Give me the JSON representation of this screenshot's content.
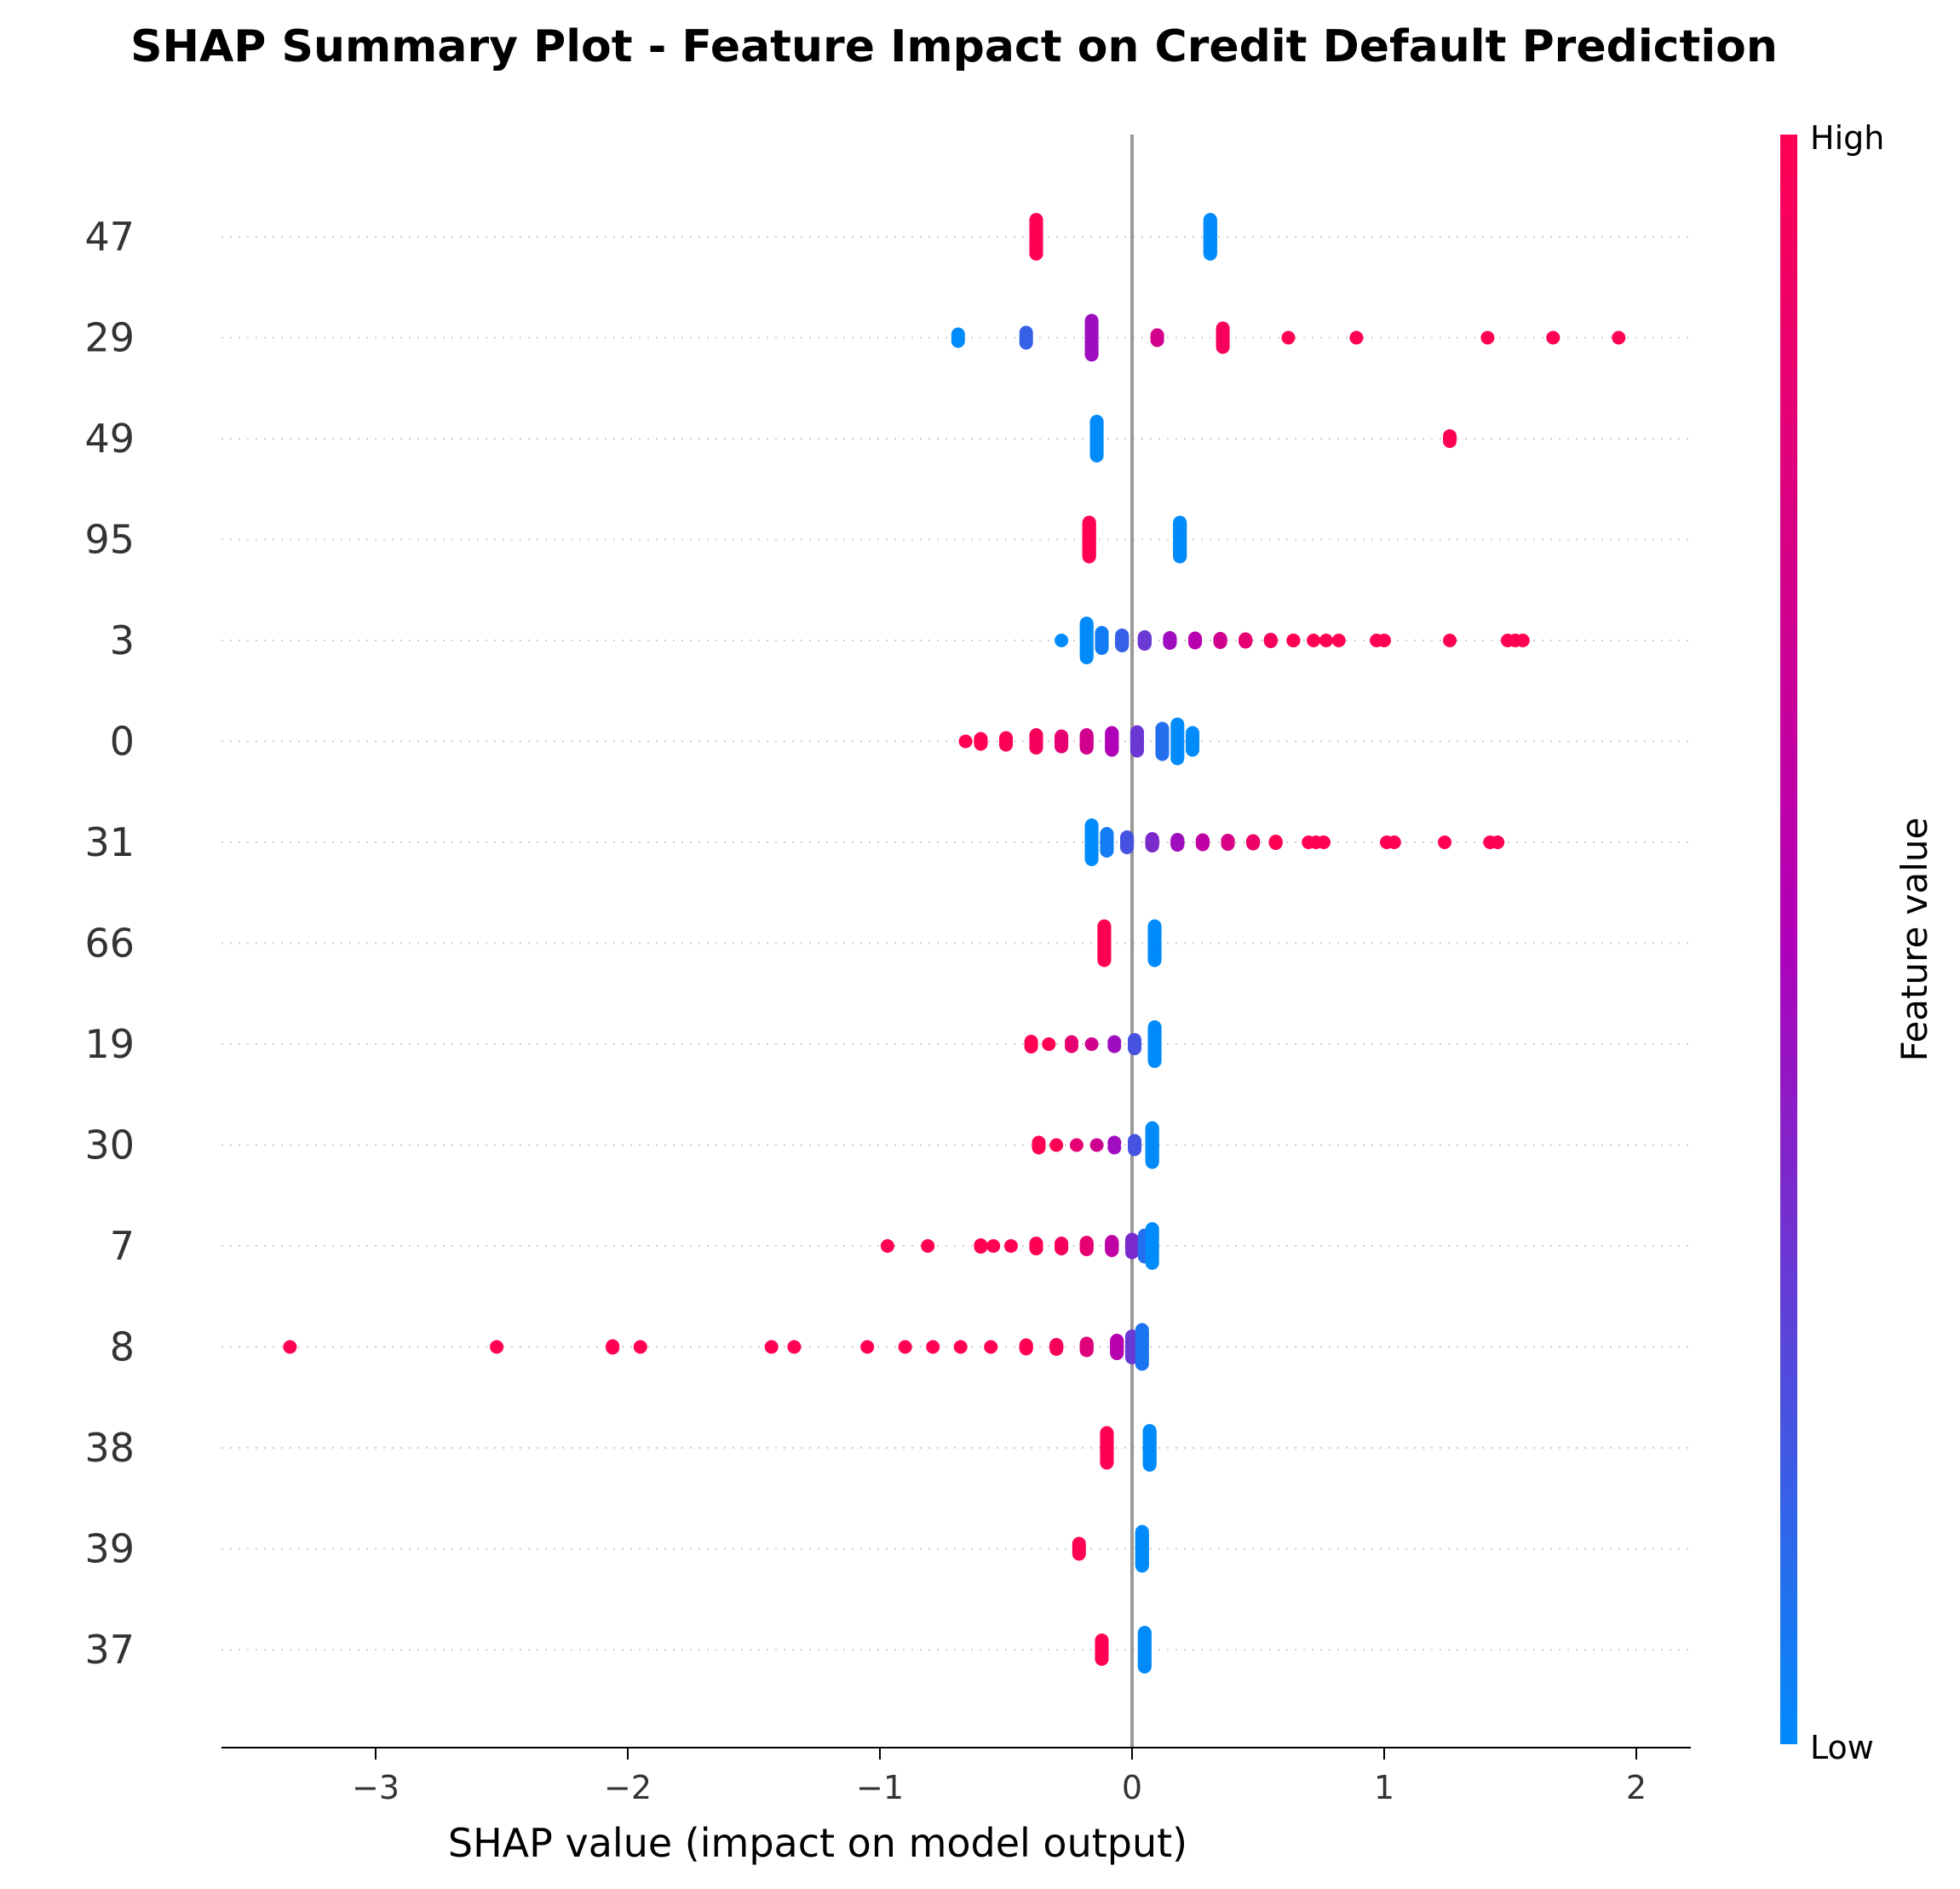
{
  "chart_data": {
    "type": "scatter",
    "title": "SHAP Summary Plot - Feature Impact on Credit Default Prediction",
    "xlabel": "SHAP value (impact on model output)",
    "xlim": [
      -3.6,
      2.2
    ],
    "x_ticks": [
      -3,
      -2,
      -1,
      0,
      1,
      2
    ],
    "x_tick_labels": [
      "−3",
      "−2",
      "−1",
      "0",
      "1",
      "2"
    ],
    "colorbar": {
      "label": "Feature value",
      "high_label": "High",
      "low_label": "Low",
      "low_color": "#008bfb",
      "mid_color": "#b000b8",
      "high_color": "#ff0052",
      "placement": "right"
    },
    "grid": "dotted horizontal",
    "features": [
      {
        "name": "47",
        "points": [
          {
            "x": -0.38,
            "v": 1,
            "n": 40,
            "spread": 0.4
          },
          {
            "x": 0.31,
            "v": 0,
            "n": 40,
            "spread": 0.4
          }
        ]
      },
      {
        "name": "29",
        "points": [
          {
            "x": -0.69,
            "v": 0,
            "n": 4,
            "spread": 0.08
          },
          {
            "x": -0.42,
            "v": 0.15,
            "n": 6,
            "spread": 0.12
          },
          {
            "x": -0.16,
            "v": 0.45,
            "n": 30,
            "spread": 0.4
          },
          {
            "x": 0.1,
            "v": 0.72,
            "n": 3,
            "spread": 0.06
          },
          {
            "x": 0.36,
            "v": 0.95,
            "n": 12,
            "spread": 0.22
          },
          {
            "x": 0.62,
            "v": 1,
            "n": 1,
            "spread": 0
          },
          {
            "x": 0.89,
            "v": 1,
            "n": 1,
            "spread": 0
          },
          {
            "x": 1.41,
            "v": 1,
            "n": 1,
            "spread": 0
          },
          {
            "x": 1.67,
            "v": 1,
            "n": 1,
            "spread": 0
          },
          {
            "x": 1.93,
            "v": 1,
            "n": 1,
            "spread": 0
          }
        ]
      },
      {
        "name": "49",
        "points": [
          {
            "x": -0.14,
            "v": 0,
            "n": 40,
            "spread": 0.4
          },
          {
            "x": 1.26,
            "v": 1,
            "n": 3,
            "spread": 0.06
          }
        ]
      },
      {
        "name": "95",
        "points": [
          {
            "x": -0.17,
            "v": 1,
            "n": 40,
            "spread": 0.4
          },
          {
            "x": 0.19,
            "v": 0,
            "n": 40,
            "spread": 0.4
          }
        ]
      },
      {
        "name": "3",
        "points": [
          {
            "x": -0.28,
            "v": 0,
            "n": 1,
            "spread": 0
          },
          {
            "x": -0.18,
            "v": 0,
            "n": 30,
            "spread": 0.4
          },
          {
            "x": -0.12,
            "v": 0.05,
            "n": 20,
            "spread": 0.18
          },
          {
            "x": -0.04,
            "v": 0.15,
            "n": 20,
            "spread": 0.12
          },
          {
            "x": 0.05,
            "v": 0.3,
            "n": 16,
            "spread": 0.08
          },
          {
            "x": 0.15,
            "v": 0.45,
            "n": 14,
            "spread": 0.06
          },
          {
            "x": 0.25,
            "v": 0.55,
            "n": 12,
            "spread": 0.05
          },
          {
            "x": 0.35,
            "v": 0.7,
            "n": 10,
            "spread": 0.04
          },
          {
            "x": 0.45,
            "v": 0.85,
            "n": 8,
            "spread": 0.03
          },
          {
            "x": 0.55,
            "v": 0.95,
            "n": 6,
            "spread": 0.02
          },
          {
            "x": 0.64,
            "v": 1,
            "n": 4,
            "spread": 0
          },
          {
            "x": 0.72,
            "v": 1,
            "n": 1,
            "spread": 0
          },
          {
            "x": 0.77,
            "v": 1,
            "n": 1,
            "spread": 0
          },
          {
            "x": 0.82,
            "v": 1,
            "n": 1,
            "spread": 0
          },
          {
            "x": 0.97,
            "v": 1,
            "n": 1,
            "spread": 0
          },
          {
            "x": 1.0,
            "v": 1,
            "n": 1,
            "spread": 0
          },
          {
            "x": 1.26,
            "v": 1,
            "n": 1,
            "spread": 0
          },
          {
            "x": 1.49,
            "v": 1,
            "n": 1,
            "spread": 0
          },
          {
            "x": 1.52,
            "v": 1,
            "n": 1,
            "spread": 0
          },
          {
            "x": 1.55,
            "v": 1,
            "n": 1,
            "spread": 0
          }
        ]
      },
      {
        "name": "0",
        "points": [
          {
            "x": -0.66,
            "v": 1,
            "n": 1,
            "spread": 0
          },
          {
            "x": -0.6,
            "v": 1,
            "n": 6,
            "spread": 0.06
          },
          {
            "x": -0.5,
            "v": 0.98,
            "n": 12,
            "spread": 0.08
          },
          {
            "x": -0.38,
            "v": 0.95,
            "n": 16,
            "spread": 0.15
          },
          {
            "x": -0.28,
            "v": 0.85,
            "n": 16,
            "spread": 0.12
          },
          {
            "x": -0.18,
            "v": 0.7,
            "n": 18,
            "spread": 0.15
          },
          {
            "x": -0.08,
            "v": 0.5,
            "n": 20,
            "spread": 0.2
          },
          {
            "x": 0.02,
            "v": 0.3,
            "n": 22,
            "spread": 0.22
          },
          {
            "x": 0.12,
            "v": 0.1,
            "n": 24,
            "spread": 0.3
          },
          {
            "x": 0.18,
            "v": 0,
            "n": 24,
            "spread": 0.4
          },
          {
            "x": 0.24,
            "v": 0,
            "n": 12,
            "spread": 0.2
          }
        ]
      },
      {
        "name": "31",
        "points": [
          {
            "x": -0.16,
            "v": 0,
            "n": 30,
            "spread": 0.4
          },
          {
            "x": -0.1,
            "v": 0.05,
            "n": 20,
            "spread": 0.2
          },
          {
            "x": -0.02,
            "v": 0.2,
            "n": 18,
            "spread": 0.12
          },
          {
            "x": 0.08,
            "v": 0.35,
            "n": 16,
            "spread": 0.08
          },
          {
            "x": 0.18,
            "v": 0.45,
            "n": 14,
            "spread": 0.06
          },
          {
            "x": 0.28,
            "v": 0.6,
            "n": 12,
            "spread": 0.05
          },
          {
            "x": 0.38,
            "v": 0.75,
            "n": 10,
            "spread": 0.04
          },
          {
            "x": 0.48,
            "v": 0.9,
            "n": 8,
            "spread": 0.03
          },
          {
            "x": 0.57,
            "v": 1,
            "n": 6,
            "spread": 0.02
          },
          {
            "x": 0.7,
            "v": 1,
            "n": 1,
            "spread": 0
          },
          {
            "x": 0.73,
            "v": 1,
            "n": 1,
            "spread": 0
          },
          {
            "x": 0.76,
            "v": 1,
            "n": 1,
            "spread": 0
          },
          {
            "x": 1.01,
            "v": 1,
            "n": 1,
            "spread": 0
          },
          {
            "x": 1.04,
            "v": 1,
            "n": 1,
            "spread": 0
          },
          {
            "x": 1.24,
            "v": 1,
            "n": 1,
            "spread": 0
          },
          {
            "x": 1.42,
            "v": 1,
            "n": 1,
            "spread": 0
          },
          {
            "x": 1.45,
            "v": 1,
            "n": 1,
            "spread": 0
          }
        ]
      },
      {
        "name": "66",
        "points": [
          {
            "x": -0.11,
            "v": 1,
            "n": 40,
            "spread": 0.4
          },
          {
            "x": 0.09,
            "v": 0,
            "n": 40,
            "spread": 0.4
          }
        ]
      },
      {
        "name": "19",
        "points": [
          {
            "x": -0.4,
            "v": 1,
            "n": 3,
            "spread": 0.06
          },
          {
            "x": -0.33,
            "v": 1,
            "n": 1,
            "spread": 0
          },
          {
            "x": -0.24,
            "v": 0.85,
            "n": 2,
            "spread": 0.05
          },
          {
            "x": -0.16,
            "v": 0.7,
            "n": 1,
            "spread": 0
          },
          {
            "x": -0.07,
            "v": 0.45,
            "n": 2,
            "spread": 0.05
          },
          {
            "x": 0.01,
            "v": 0.2,
            "n": 6,
            "spread": 0.1
          },
          {
            "x": 0.09,
            "v": 0,
            "n": 40,
            "spread": 0.4
          }
        ]
      },
      {
        "name": "30",
        "points": [
          {
            "x": -0.37,
            "v": 1,
            "n": 3,
            "spread": 0.06
          },
          {
            "x": -0.3,
            "v": 1,
            "n": 1,
            "spread": 0
          },
          {
            "x": -0.22,
            "v": 0.85,
            "n": 1,
            "spread": 0
          },
          {
            "x": -0.14,
            "v": 0.7,
            "n": 1,
            "spread": 0
          },
          {
            "x": -0.07,
            "v": 0.45,
            "n": 2,
            "spread": 0.06
          },
          {
            "x": 0.01,
            "v": 0.2,
            "n": 6,
            "spread": 0.1
          },
          {
            "x": 0.08,
            "v": 0,
            "n": 40,
            "spread": 0.4
          }
        ]
      },
      {
        "name": "7",
        "points": [
          {
            "x": -0.97,
            "v": 1,
            "n": 1,
            "spread": 0
          },
          {
            "x": -0.81,
            "v": 1,
            "n": 1,
            "spread": 0
          },
          {
            "x": -0.6,
            "v": 1,
            "n": 2,
            "spread": 0.02
          },
          {
            "x": -0.55,
            "v": 1,
            "n": 1,
            "spread": 0
          },
          {
            "x": -0.48,
            "v": 1,
            "n": 1,
            "spread": 0
          },
          {
            "x": -0.38,
            "v": 1,
            "n": 10,
            "spread": 0.06
          },
          {
            "x": -0.28,
            "v": 0.95,
            "n": 10,
            "spread": 0.06
          },
          {
            "x": -0.18,
            "v": 0.85,
            "n": 12,
            "spread": 0.08
          },
          {
            "x": -0.08,
            "v": 0.6,
            "n": 14,
            "spread": 0.1
          },
          {
            "x": 0.0,
            "v": 0.35,
            "n": 18,
            "spread": 0.15
          },
          {
            "x": 0.05,
            "v": 0.1,
            "n": 20,
            "spread": 0.25
          },
          {
            "x": 0.08,
            "v": 0,
            "n": 24,
            "spread": 0.4
          }
        ]
      },
      {
        "name": "8",
        "points": [
          {
            "x": -3.34,
            "v": 1,
            "n": 1,
            "spread": 0
          },
          {
            "x": -2.52,
            "v": 1,
            "n": 1,
            "spread": 0
          },
          {
            "x": -2.06,
            "v": 1,
            "n": 2,
            "spread": 0.02
          },
          {
            "x": -1.95,
            "v": 1,
            "n": 1,
            "spread": 0
          },
          {
            "x": -1.43,
            "v": 1,
            "n": 1,
            "spread": 0
          },
          {
            "x": -1.34,
            "v": 1,
            "n": 1,
            "spread": 0
          },
          {
            "x": -1.05,
            "v": 1,
            "n": 1,
            "spread": 0
          },
          {
            "x": -0.9,
            "v": 1,
            "n": 1,
            "spread": 0
          },
          {
            "x": -0.79,
            "v": 1,
            "n": 1,
            "spread": 0
          },
          {
            "x": -0.68,
            "v": 1,
            "n": 1,
            "spread": 0
          },
          {
            "x": -0.56,
            "v": 1,
            "n": 1,
            "spread": 0
          },
          {
            "x": -0.42,
            "v": 1,
            "n": 6,
            "spread": 0.04
          },
          {
            "x": -0.3,
            "v": 0.95,
            "n": 10,
            "spread": 0.05
          },
          {
            "x": -0.18,
            "v": 0.8,
            "n": 12,
            "spread": 0.08
          },
          {
            "x": -0.06,
            "v": 0.55,
            "n": 16,
            "spread": 0.15
          },
          {
            "x": 0.0,
            "v": 0.3,
            "n": 20,
            "spread": 0.25
          },
          {
            "x": 0.04,
            "v": 0.08,
            "n": 24,
            "spread": 0.4
          }
        ]
      },
      {
        "name": "38",
        "points": [
          {
            "x": -0.1,
            "v": 1,
            "n": 40,
            "spread": 0.35
          },
          {
            "x": 0.07,
            "v": 0,
            "n": 40,
            "spread": 0.4
          }
        ]
      },
      {
        "name": "39",
        "points": [
          {
            "x": -0.21,
            "v": 1,
            "n": 6,
            "spread": 0.12
          },
          {
            "x": 0.04,
            "v": 0,
            "n": 40,
            "spread": 0.4
          }
        ]
      },
      {
        "name": "37",
        "points": [
          {
            "x": -0.12,
            "v": 1,
            "n": 20,
            "spread": 0.22
          },
          {
            "x": 0.05,
            "v": 0,
            "n": 40,
            "spread": 0.4
          }
        ]
      }
    ]
  }
}
